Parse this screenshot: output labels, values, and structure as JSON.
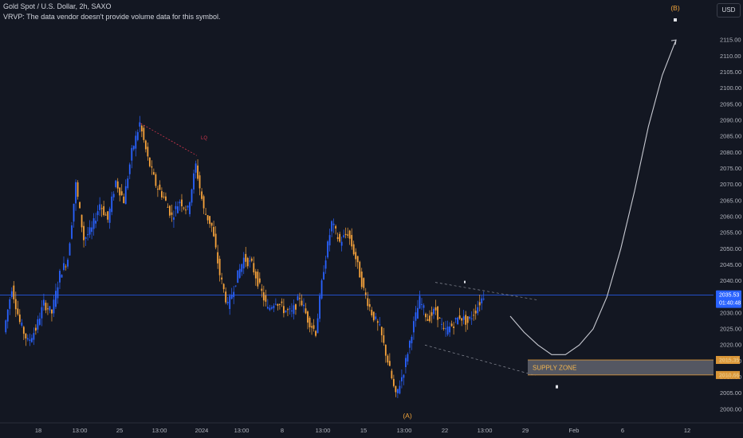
{
  "header": {
    "title": "Gold Spot / U.S. Dollar, 2h, SAXO",
    "vrvp_note": "VRVP: The data vendor doesn't provide volume data for this symbol."
  },
  "currency_button": "USD",
  "colors": {
    "background": "#131722",
    "bull": "#2962ff",
    "bear": "#f7a33b",
    "price_line": "#2962ff",
    "zone_border": "#f0a33a",
    "liquidity": "#d2364d"
  },
  "chart_data": {
    "type": "candlestick",
    "symbol": "Gold Spot / U.S. Dollar",
    "interval": "2h",
    "source": "SAXO",
    "y_ticks": [
      2000,
      2005,
      2010,
      2015,
      2020,
      2025,
      2030,
      2035,
      2040,
      2045,
      2050,
      2055,
      2060,
      2065,
      2070,
      2075,
      2080,
      2085,
      2090,
      2095,
      2100,
      2105,
      2110,
      2115
    ],
    "ylim": [
      1997,
      2119
    ],
    "x_labels": [
      "18",
      "13:00",
      "25",
      "13:00",
      "2024",
      "13:00",
      "8",
      "13:00",
      "15",
      "13:00",
      "22",
      "13:00",
      "29",
      "Feb",
      "6",
      "12"
    ],
    "last_price": "2035.53",
    "countdown": "01:40:48",
    "price_levels": [
      {
        "label": "2015.35",
        "value": 2015.35
      },
      {
        "label": "2010.66",
        "value": 2010.66
      }
    ],
    "supply_zone": {
      "label": "SUPPLY ZONE",
      "top": 2015.35,
      "bottom": 2010.66
    },
    "wave_labels": [
      {
        "label": "(A)",
        "price": 2002.5
      },
      {
        "label": "(B)",
        "price": 2117.5
      }
    ],
    "liquidity_label": "LQ",
    "price_path": [
      [
        0,
        2024
      ],
      [
        1,
        2038
      ],
      [
        2,
        2027
      ],
      [
        3,
        2021
      ],
      [
        4,
        2025
      ],
      [
        5,
        2033
      ],
      [
        6,
        2030
      ],
      [
        7,
        2042
      ],
      [
        8,
        2047
      ],
      [
        9,
        2070
      ],
      [
        10,
        2053
      ],
      [
        11,
        2056
      ],
      [
        12,
        2064
      ],
      [
        13,
        2059
      ],
      [
        14,
        2071
      ],
      [
        15,
        2065
      ],
      [
        16,
        2080
      ],
      [
        17,
        2089
      ],
      [
        18,
        2078
      ],
      [
        19,
        2070
      ],
      [
        20,
        2066
      ],
      [
        21,
        2060
      ],
      [
        22,
        2065
      ],
      [
        23,
        2062
      ],
      [
        24,
        2076
      ],
      [
        25,
        2062
      ],
      [
        26,
        2057
      ],
      [
        27,
        2042
      ],
      [
        28,
        2032
      ],
      [
        29,
        2040
      ],
      [
        30,
        2047
      ],
      [
        31,
        2045
      ],
      [
        32,
        2038
      ],
      [
        33,
        2031
      ],
      [
        34,
        2034
      ],
      [
        35,
        2031
      ],
      [
        36,
        2030
      ],
      [
        37,
        2035
      ],
      [
        38,
        2028
      ],
      [
        39,
        2024
      ],
      [
        40,
        2044
      ],
      [
        41,
        2058
      ],
      [
        42,
        2052
      ],
      [
        43,
        2055
      ],
      [
        44,
        2047
      ],
      [
        45,
        2037
      ],
      [
        46,
        2030
      ],
      [
        47,
        2025
      ],
      [
        48,
        2015
      ],
      [
        49,
        2004
      ],
      [
        50,
        2012
      ],
      [
        51,
        2024
      ],
      [
        52,
        2034
      ],
      [
        53,
        2028
      ],
      [
        54,
        2031
      ],
      [
        55,
        2024
      ],
      [
        56,
        2026
      ],
      [
        57,
        2029
      ],
      [
        58,
        2027
      ],
      [
        59,
        2031
      ],
      [
        60,
        2035.53
      ]
    ],
    "projection": [
      [
        61,
        2029
      ],
      [
        62,
        2024
      ],
      [
        63,
        2020
      ],
      [
        64,
        2017
      ],
      [
        65,
        2017
      ],
      [
        66,
        2020
      ],
      [
        67,
        2025
      ],
      [
        68,
        2035
      ],
      [
        69,
        2050
      ],
      [
        70,
        2068
      ],
      [
        71,
        2088
      ],
      [
        72,
        2104
      ],
      [
        73,
        2115
      ]
    ]
  }
}
